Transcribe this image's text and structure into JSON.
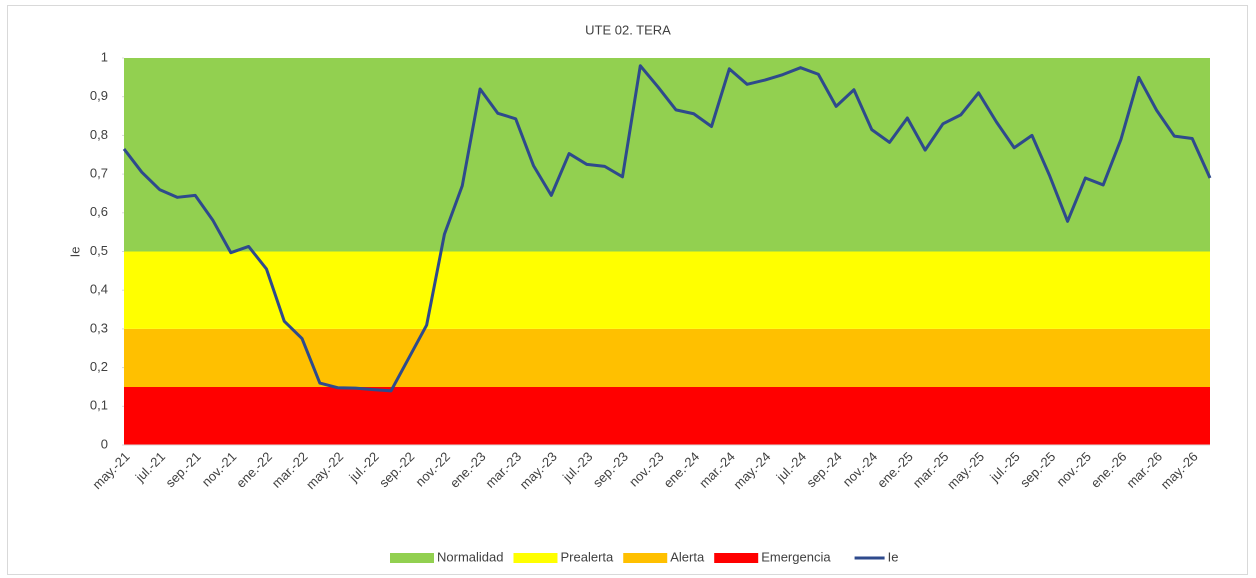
{
  "chart_data": {
    "type": "area-line",
    "title": "UTE 02. TERA",
    "y_label": "Ie",
    "categories": [
      "may.-21",
      null,
      "jul.-21",
      null,
      "sep.-21",
      null,
      "nov.-21",
      null,
      "ene.-22",
      null,
      "mar.-22",
      null,
      "may.-22",
      null,
      "jul.-22",
      null,
      "sep.-22",
      null,
      "nov.-22",
      null,
      "ene.-23",
      null,
      "mar.-23",
      null,
      "may.-23",
      null,
      "jul.-23",
      null,
      "sep.-23",
      null,
      "nov.-23",
      null,
      "ene.-24",
      null,
      "mar.-24",
      null,
      "may.-24",
      null,
      "jul.-24",
      null,
      "sep.-24",
      null,
      "nov.-24",
      null,
      "ene.-25",
      null,
      "mar.-25",
      null,
      "may.-25",
      null,
      "jul.-25",
      null,
      "sep.-25",
      null,
      "nov.-25",
      null,
      "ene.-26",
      null,
      "mar.-26",
      null,
      "may.-26",
      null
    ],
    "series": [
      {
        "name": "Normalidad",
        "type": "area",
        "color": "#92d050",
        "values": [
          0.5,
          0.5,
          0.5,
          0.5,
          0.5,
          0.5,
          0.5,
          0.5,
          0.5,
          0.5,
          0.5,
          0.5,
          0.5,
          0.5,
          0.5,
          0.5,
          0.5,
          0.5,
          0.5,
          0.5,
          0.5,
          0.5,
          0.5,
          0.5,
          0.5,
          0.5,
          0.5,
          0.5,
          0.5,
          0.5,
          0.5,
          0.5,
          0.5,
          0.5,
          0.5,
          0.5,
          0.5,
          0.5,
          0.5,
          0.5,
          0.5,
          0.5,
          0.5,
          0.5,
          0.5,
          0.5,
          0.5,
          0.5,
          0.5,
          0.5,
          0.5,
          0.5,
          0.5,
          0.5,
          0.5,
          0.5,
          0.5,
          0.5,
          0.5,
          0.5,
          0.5,
          0.5
        ]
      },
      {
        "name": "Prealerta",
        "type": "area",
        "color": "#ffff00",
        "values": [
          0.2,
          0.2,
          0.2,
          0.2,
          0.2,
          0.2,
          0.2,
          0.2,
          0.2,
          0.2,
          0.2,
          0.2,
          0.2,
          0.2,
          0.2,
          0.2,
          0.2,
          0.2,
          0.2,
          0.2,
          0.2,
          0.2,
          0.2,
          0.2,
          0.2,
          0.2,
          0.2,
          0.2,
          0.2,
          0.2,
          0.2,
          0.2,
          0.2,
          0.2,
          0.2,
          0.2,
          0.2,
          0.2,
          0.2,
          0.2,
          0.2,
          0.2,
          0.2,
          0.2,
          0.2,
          0.2,
          0.2,
          0.2,
          0.2,
          0.2,
          0.2,
          0.2,
          0.2,
          0.2,
          0.2,
          0.2,
          0.2,
          0.2,
          0.2,
          0.2,
          0.2,
          0.2
        ]
      },
      {
        "name": "Alerta",
        "type": "area",
        "color": "#ffc000",
        "values": [
          0.15,
          0.15,
          0.15,
          0.15,
          0.15,
          0.15,
          0.15,
          0.15,
          0.15,
          0.15,
          0.15,
          0.15,
          0.15,
          0.15,
          0.15,
          0.15,
          0.15,
          0.15,
          0.15,
          0.15,
          0.15,
          0.15,
          0.15,
          0.15,
          0.15,
          0.15,
          0.15,
          0.15,
          0.15,
          0.15,
          0.15,
          0.15,
          0.15,
          0.15,
          0.15,
          0.15,
          0.15,
          0.15,
          0.15,
          0.15,
          0.15,
          0.15,
          0.15,
          0.15,
          0.15,
          0.15,
          0.15,
          0.15,
          0.15,
          0.15,
          0.15,
          0.15,
          0.15,
          0.15,
          0.15,
          0.15,
          0.15,
          0.15,
          0.15,
          0.15,
          0.15,
          0.15
        ]
      },
      {
        "name": "Emergencia",
        "type": "area",
        "color": "#ff0000",
        "values": [
          0.15,
          0.15,
          0.15,
          0.15,
          0.15,
          0.15,
          0.15,
          0.15,
          0.15,
          0.15,
          0.15,
          0.15,
          0.15,
          0.15,
          0.15,
          0.15,
          0.15,
          0.15,
          0.15,
          0.15,
          0.15,
          0.15,
          0.15,
          0.15,
          0.15,
          0.15,
          0.15,
          0.15,
          0.15,
          0.15,
          0.15,
          0.15,
          0.15,
          0.15,
          0.15,
          0.15,
          0.15,
          0.15,
          0.15,
          0.15,
          0.15,
          0.15,
          0.15,
          0.15,
          0.15,
          0.15,
          0.15,
          0.15,
          0.15,
          0.15,
          0.15,
          0.15,
          0.15,
          0.15,
          0.15,
          0.15,
          0.15,
          0.15,
          0.15,
          0.15,
          0.15,
          0.15
        ]
      },
      {
        "name": "Ie",
        "type": "line",
        "color": "#2e4a8c",
        "values": [
          0.765,
          0.705,
          0.66,
          0.64,
          0.645,
          0.58,
          0.497,
          0.513,
          0.455,
          0.32,
          0.275,
          0.16,
          0.148,
          0.147,
          0.143,
          0.14,
          0.225,
          0.31,
          0.545,
          0.67,
          0.92,
          0.857,
          0.843,
          0.722,
          0.645,
          0.753,
          0.725,
          0.72,
          0.693,
          0.98,
          0.925,
          0.866,
          0.856,
          0.823,
          0.972,
          0.932,
          0.943,
          0.957,
          0.975,
          0.958,
          0.875,
          0.918,
          0.815,
          0.782,
          0.845,
          0.762,
          0.83,
          0.853,
          0.91,
          0.835,
          0.768,
          0.8,
          0.695,
          0.578,
          0.69,
          0.672,
          0.79,
          0.95,
          0.865,
          0.798,
          0.792,
          0.69
        ]
      }
    ],
    "ylim": [
      0,
      1
    ],
    "yticks": [
      0,
      {
        "value": 0.1,
        "label": "0,1"
      },
      {
        "value": 0.2,
        "label": "0,2"
      },
      {
        "value": 0.3,
        "label": "0,3"
      },
      {
        "value": 0.4,
        "label": "0,4"
      },
      {
        "value": 0.5,
        "label": "0,5"
      },
      {
        "value": 0.6,
        "label": "0,6"
      },
      {
        "value": 0.7,
        "label": "0,7"
      },
      {
        "value": 0.8,
        "label": "0,8"
      },
      {
        "value": 0.9,
        "label": "0,9"
      },
      1
    ],
    "legend": "bottom"
  }
}
